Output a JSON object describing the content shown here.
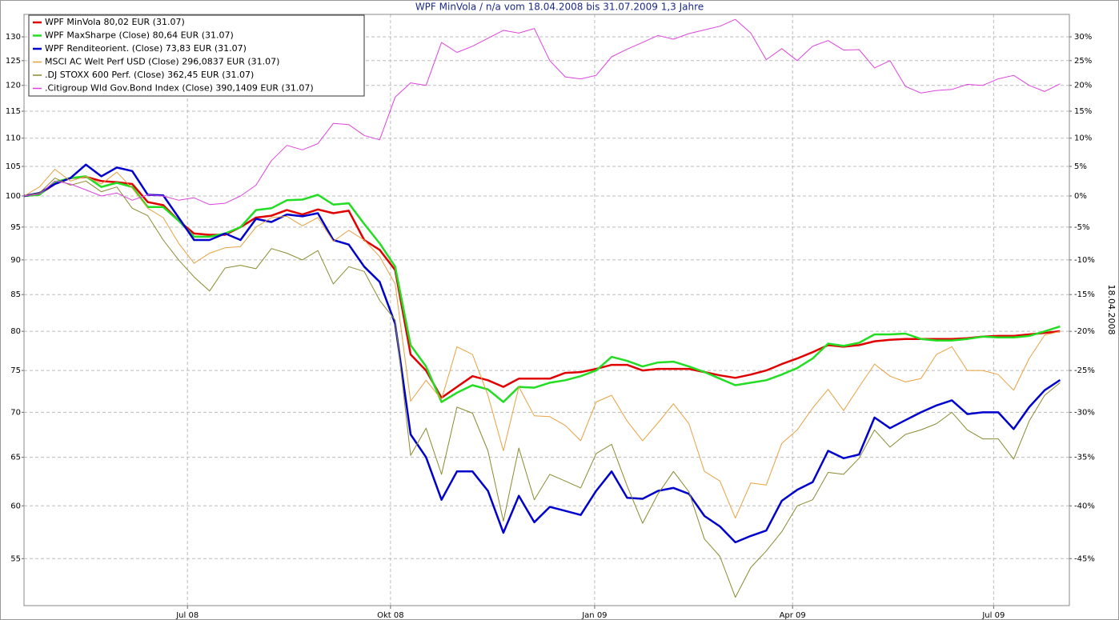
{
  "chart_data": {
    "type": "line",
    "title": "WPF MinVola / n/a vom 18.04.2008 bis 31.07.2009 1,3 Jahre",
    "y2_label": "18.04.2008",
    "log_scale": true,
    "grid": true,
    "legend": "upper left",
    "xlim": [
      0,
      67.6
    ],
    "xticks": [
      {
        "value": 10.57,
        "label": "Jul 08"
      },
      {
        "value": 23.7,
        "label": "Okt 08"
      },
      {
        "value": 36.9,
        "label": "Jan 09"
      },
      {
        "value": 49.7,
        "label": "Apr 09"
      },
      {
        "value": 62.7,
        "label": "Jul 09"
      }
    ],
    "ylim": [
      50.9,
      134.9
    ],
    "yticks": [
      55,
      60,
      65,
      70,
      75,
      80,
      85,
      90,
      95,
      100,
      105,
      110,
      115,
      120,
      125,
      130
    ],
    "y2lim": [
      -49.1,
      34.9
    ],
    "y2ticks": [
      {
        "value": 30,
        "label": "30%"
      },
      {
        "value": 25,
        "label": "25%"
      },
      {
        "value": 20,
        "label": "20%"
      },
      {
        "value": 15,
        "label": "15%"
      },
      {
        "value": 10,
        "label": "10%"
      },
      {
        "value": 5,
        "label": "5%"
      },
      {
        "value": 0,
        "label": "0%"
      },
      {
        "value": -5,
        "label": "-5%"
      },
      {
        "value": -10,
        "label": "-10%"
      },
      {
        "value": -15,
        "label": "-15%"
      },
      {
        "value": -20,
        "label": "-20%"
      },
      {
        "value": -25,
        "label": "-25%"
      },
      {
        "value": -30,
        "label": "-30%"
      },
      {
        "value": -35,
        "label": "-35%"
      },
      {
        "value": -40,
        "label": "-40%"
      },
      {
        "value": -45,
        "label": "-45%"
      }
    ],
    "series": [
      {
        "name": "WPF MinVola 80,02 EUR (31.07)",
        "color": "#e00000",
        "width": 2.5,
        "values": [
          100,
          100.3,
          102,
          103,
          103.2,
          102.5,
          102.3,
          102,
          99,
          98.5,
          96,
          94,
          93.8,
          93.8,
          95,
          96.5,
          96.8,
          97.7,
          97,
          97.8,
          97.2,
          97.6,
          93,
          91.5,
          88.5,
          77,
          75,
          71.7,
          73,
          74.3,
          73.8,
          73,
          74,
          74,
          74,
          74.7,
          74.8,
          75.2,
          75.7,
          75.7,
          75,
          75.2,
          75.2,
          75.2,
          74.8,
          74.4,
          74.1,
          74.5,
          75,
          75.8,
          76.5,
          77.3,
          78.2,
          78,
          78.2,
          78.7,
          78.9,
          79,
          79,
          79,
          79,
          79.1,
          79.3,
          79.4,
          79.4,
          79.6,
          79.8,
          80.02
        ]
      },
      {
        "name": "WPF MaxSharpe (Close) 80,64 EUR (31.07)",
        "color": "#22dd22",
        "width": 2.5,
        "values": [
          100,
          100.2,
          102.3,
          103,
          103.3,
          101.5,
          102.2,
          101.5,
          98.2,
          98.2,
          96,
          93.5,
          93.5,
          94,
          95,
          97.7,
          98,
          99.3,
          99.4,
          100.2,
          98.6,
          98.8,
          95.5,
          92.5,
          89,
          78.2,
          75.5,
          71.2,
          72.3,
          73.2,
          72.7,
          71.2,
          73,
          72.9,
          73.5,
          73.8,
          74.3,
          75,
          76.7,
          76.2,
          75.5,
          76,
          76.1,
          75.5,
          74.8,
          74,
          73.2,
          73.5,
          73.8,
          74.5,
          75.3,
          76.5,
          78.4,
          78.1,
          78.5,
          79.6,
          79.6,
          79.7,
          79,
          78.8,
          78.8,
          79,
          79.3,
          79.2,
          79.2,
          79.4,
          80,
          80.64
        ]
      },
      {
        "name": "WPF Renditeorient. (Close) 73,83 EUR (31.07)",
        "color": "#0000cc",
        "width": 2.5,
        "values": [
          100,
          100.5,
          102,
          103,
          105.3,
          103.3,
          104.8,
          104.2,
          100.2,
          100.1,
          96.5,
          93,
          93,
          94,
          93,
          96.3,
          95.8,
          97,
          96.7,
          97.2,
          93,
          92.3,
          89,
          86.8,
          81,
          67.5,
          65,
          60.6,
          63.5,
          63.5,
          61.5,
          57.4,
          61,
          58.4,
          59.9,
          59.5,
          59.1,
          61.5,
          63.5,
          60.8,
          60.7,
          61.5,
          61.8,
          61.2,
          59,
          58,
          56.5,
          57.1,
          57.6,
          60.5,
          61.6,
          62.4,
          65.7,
          64.9,
          65.3,
          69.4,
          68.2,
          69.1,
          70,
          70.8,
          71.4,
          69.8,
          70,
          70,
          68.1,
          70.6,
          72.6,
          73.83
        ]
      },
      {
        "name": "MSCI AC Welt Perf USD (Close) 296,0837 EUR (31.07)",
        "color": "#e8a040",
        "width": 1,
        "values": [
          100,
          101.5,
          104.5,
          102.5,
          103.3,
          102,
          104,
          101.3,
          98,
          96.5,
          92.5,
          89.5,
          91,
          91.8,
          92,
          95,
          96.5,
          96.7,
          95.2,
          96.5,
          92.8,
          94.5,
          93,
          90.5,
          86.5,
          71.3,
          73.8,
          71.5,
          78,
          77,
          72,
          65.7,
          73,
          69.6,
          69.5,
          68.5,
          66.8,
          71.2,
          72,
          69,
          66.8,
          68.8,
          71,
          68.7,
          63.5,
          62.5,
          58.8,
          62.3,
          62.1,
          66.5,
          68,
          70.5,
          72.7,
          70.2,
          73,
          75.8,
          74.3,
          73.6,
          74,
          77,
          78,
          75,
          75,
          74.5,
          72.6,
          76.5,
          79.5,
          80
        ]
      },
      {
        "name": ".DJ STOXX 600 Perf. (Close) 362,45 EUR (31.07)",
        "color": "#8a8a30",
        "width": 1,
        "values": [
          100,
          100.5,
          103,
          101.8,
          102.5,
          100.7,
          101.5,
          98,
          96.8,
          93,
          90,
          87.5,
          85.5,
          88.8,
          89.2,
          88.7,
          91.7,
          91,
          90,
          91.4,
          86.5,
          89,
          88.3,
          84.2,
          81.5,
          65.2,
          68.2,
          63.2,
          70.6,
          69.9,
          65.7,
          58.5,
          66,
          60.6,
          63.2,
          62.5,
          61.8,
          65.4,
          66.4,
          62,
          58.3,
          61.2,
          63.5,
          61.4,
          56.8,
          55.2,
          51.6,
          54.2,
          55.7,
          57.5,
          60,
          60.6,
          63.4,
          63.2,
          64.9,
          68,
          66.1,
          67.5,
          68,
          68.7,
          70,
          68,
          67,
          67,
          64.8,
          69,
          72,
          73.5
        ]
      },
      {
        "name": ".Citigroup Wld Gov.Bond Index (Close) 390,1409 EUR (31.07)",
        "color": "#dd44dd",
        "width": 1,
        "values": [
          100,
          100.3,
          102.5,
          102,
          101,
          100,
          100.5,
          99.3,
          100.2,
          100,
          99.3,
          99.7,
          98.6,
          98.8,
          100,
          101.8,
          106,
          108.7,
          107.9,
          109,
          112.7,
          112.5,
          110.5,
          109.7,
          117.7,
          120.5,
          120,
          128.8,
          126.7,
          128,
          129.7,
          131.4,
          130.8,
          131.8,
          125,
          121.7,
          121.3,
          122,
          125.8,
          127.4,
          128.8,
          130.3,
          129.5,
          130.7,
          131.5,
          132.3,
          133.8,
          130.8,
          125.2,
          127.5,
          125,
          128,
          129.2,
          127.2,
          127.3,
          123.5,
          125,
          119.8,
          118.5,
          119,
          119.2,
          120.2,
          120,
          121.3,
          122,
          120,
          118.8,
          120.3
        ]
      }
    ]
  }
}
